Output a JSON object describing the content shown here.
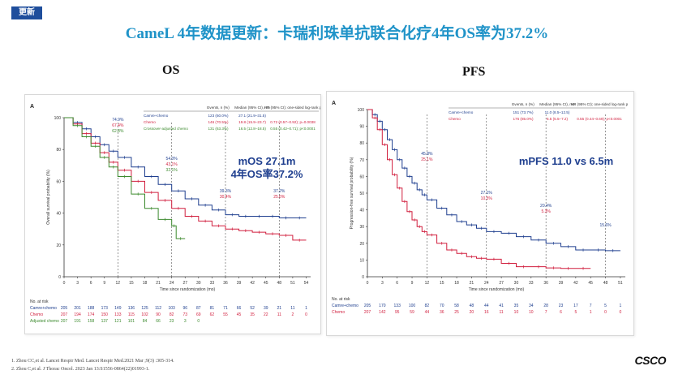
{
  "tag": "更新",
  "title": "CameL 4年数据更新：卡瑞利珠单抗联合化疗4年OS率为37.2%",
  "os_heading": "OS",
  "pfs_heading": "PFS",
  "footnotes": [
    "1.   Zhou CC,et al. Lancet Respir Med. Lancet Respir Med.2021 Mar ;9(3) :305-314.",
    "2.   Zhou C,et al. J Thorac Oncol. 2023 Jan 13:S1556-0864(22)01993-1."
  ],
  "logo_text": "CSCO",
  "colors": {
    "blue": "#1f3f8f",
    "red": "#d11f3e",
    "green": "#3c8a2e",
    "accent": "#1f93c8"
  },
  "chart_data": [
    {
      "type": "line",
      "panel_label": "A",
      "xlabel": "Time since randomization (mo)",
      "ylabel": "Overall survival probability (%)",
      "xticks": [
        "0",
        "3",
        "6",
        "9",
        "12",
        "15",
        "18",
        "21",
        "24",
        "27",
        "30",
        "33",
        "36",
        "39",
        "42",
        "45",
        "48",
        "51",
        "54"
      ],
      "yticks": [
        "0",
        "20",
        "40",
        "60",
        "80",
        "100"
      ],
      "xlim": [
        0,
        55
      ],
      "ylim": [
        0,
        100
      ],
      "table_header": [
        "Events, n (%)",
        "Median (95% CI), mo",
        "HR (95% CI); one-sided log-rank p"
      ],
      "table_rows": [
        {
          "name": "Camre+chemo",
          "events": "123 (60.0%)",
          "median": "27.1 (21.9–31.5)",
          "hr": ""
        },
        {
          "name": "Chemo",
          "events": "146 (70.5%)",
          "median": "19.8 (15.9–23.7)",
          "hr": "0.72 (0.57–0.92); p=0.0038"
        },
        {
          "name": "Crossover-adjusted chemo",
          "events": "131 (63.3%)",
          "median": "16.5 (12.8–18.5)",
          "hr": "0.55 (0.42–0.71); p<0.0001"
        }
      ],
      "highlight": [
        "mOS 27.1m",
        "4年OS率37.2%"
      ],
      "annotations": [
        {
          "x": 12,
          "labels": [
            "74.9%",
            "67.4%",
            "62.8%"
          ]
        },
        {
          "x": 24,
          "labels": [
            "54.0%",
            "43.1%",
            "32.1%"
          ]
        },
        {
          "x": 36,
          "labels": [
            "39.3%",
            "30.4%"
          ]
        },
        {
          "x": 48,
          "labels": [
            "37.2%",
            "25.6%"
          ]
        }
      ],
      "series": [
        {
          "name": "Camre+chemo",
          "x": [
            0,
            2,
            4,
            6,
            8,
            10,
            12,
            15,
            18,
            21,
            24,
            27,
            30,
            33,
            36,
            39,
            42,
            45,
            48,
            51,
            54
          ],
          "y": [
            100,
            97,
            93,
            88,
            83,
            79,
            75,
            69,
            63,
            58,
            54,
            49,
            45,
            42,
            39,
            38,
            38,
            38,
            37,
            37,
            37
          ]
        },
        {
          "name": "Chemo",
          "x": [
            0,
            2,
            4,
            6,
            8,
            10,
            12,
            15,
            18,
            21,
            24,
            27,
            30,
            33,
            36,
            39,
            42,
            45,
            48,
            51,
            54
          ],
          "y": [
            100,
            96,
            90,
            84,
            78,
            72,
            67,
            60,
            53,
            48,
            43,
            38,
            35,
            32,
            30,
            29,
            28,
            27,
            26,
            23,
            23
          ]
        },
        {
          "name": "Adjusted chemo",
          "x": [
            0,
            2,
            4,
            6,
            8,
            10,
            12,
            15,
            18,
            21,
            24,
            25,
            27
          ],
          "y": [
            100,
            95,
            88,
            82,
            75,
            69,
            63,
            52,
            43,
            36,
            32,
            24,
            24
          ]
        }
      ],
      "at_risk_title": "No. at risk",
      "at_risk": [
        {
          "name": "Camre+chemo",
          "values": [
            "205",
            "201",
            "188",
            "173",
            "149",
            "136",
            "125",
            "112",
            "103",
            "96",
            "87",
            "81",
            "71",
            "66",
            "52",
            "39",
            "21",
            "11",
            "1"
          ]
        },
        {
          "name": "Chemo",
          "values": [
            "207",
            "194",
            "174",
            "150",
            "133",
            "115",
            "102",
            "90",
            "82",
            "73",
            "69",
            "62",
            "55",
            "45",
            "35",
            "22",
            "11",
            "2",
            "0"
          ]
        },
        {
          "name": "Adjusted chemo",
          "values": [
            "207",
            "191",
            "158",
            "137",
            "121",
            "101",
            "84",
            "66",
            "23",
            "3",
            "0",
            "",
            "",
            "",
            "",
            "",
            "",
            "",
            ""
          ]
        }
      ]
    },
    {
      "type": "line",
      "panel_label": "A",
      "xlabel": "Time since randomization (mo)",
      "ylabel": "Progression-free survival probability (%)",
      "xticks": [
        "0",
        "3",
        "6",
        "9",
        "12",
        "15",
        "18",
        "21",
        "24",
        "27",
        "30",
        "33",
        "36",
        "39",
        "42",
        "45",
        "48",
        "51"
      ],
      "yticks": [
        "0",
        "10",
        "20",
        "30",
        "40",
        "50",
        "60",
        "70",
        "80",
        "90",
        "100"
      ],
      "xlim": [
        0,
        52
      ],
      "ylim": [
        0,
        100
      ],
      "table_header": [
        "Events, n (%)",
        "Median (95% CI), mo",
        "HR (95% CI); one-sided log-rank p"
      ],
      "table_rows": [
        {
          "name": "Camre+chemo",
          "events": "151 (73.7%)",
          "median": "11.0 (8.5–12.5)",
          "hr": ""
        },
        {
          "name": "Chemo",
          "events": "176 (85.0%)",
          "median": "6.5 (5.5–7.2)",
          "hr": "0.55 (0.44–0.69); p<0.0001"
        }
      ],
      "highlight": [
        "mPFS 11.0 vs 6.5m"
      ],
      "annotations": [
        {
          "x": 12,
          "labels": [
            "45.8%",
            "25.1%"
          ]
        },
        {
          "x": 24,
          "labels": [
            "27.1%",
            "10.5%"
          ]
        },
        {
          "x": 36,
          "labels": [
            "20.4%",
            "5.3%"
          ]
        },
        {
          "x": 48,
          "labels": [
            "15.6%"
          ]
        }
      ],
      "series": [
        {
          "name": "Camre+chemo",
          "x": [
            0,
            1,
            2,
            3,
            4,
            5,
            6,
            7,
            8,
            9,
            10,
            11,
            12,
            14,
            16,
            18,
            20,
            22,
            24,
            27,
            30,
            33,
            36,
            39,
            42,
            45,
            48,
            51
          ],
          "y": [
            100,
            97,
            93,
            88,
            82,
            76,
            70,
            65,
            60,
            56,
            52,
            49,
            46,
            41,
            37,
            33,
            31,
            29,
            27,
            26,
            24,
            22,
            20,
            18,
            16,
            16,
            15.6,
            15.6
          ]
        },
        {
          "name": "Chemo",
          "x": [
            0,
            1,
            2,
            3,
            4,
            5,
            6,
            7,
            8,
            9,
            10,
            11,
            12,
            14,
            16,
            18,
            20,
            22,
            24,
            27,
            30,
            33,
            36,
            39,
            42,
            45
          ],
          "y": [
            100,
            95,
            88,
            79,
            70,
            61,
            53,
            45,
            39,
            34,
            30,
            27,
            25,
            20,
            16,
            14,
            12,
            11,
            10.5,
            8,
            6,
            6,
            5.3,
            5,
            5,
            5
          ]
        }
      ],
      "at_risk_title": "No. at risk",
      "at_risk": [
        {
          "name": "Camre+chemo",
          "values": [
            "205",
            "170",
            "133",
            "100",
            "82",
            "70",
            "58",
            "48",
            "44",
            "41",
            "35",
            "34",
            "28",
            "23",
            "17",
            "7",
            "5",
            "1"
          ]
        },
        {
          "name": "Chemo",
          "values": [
            "207",
            "142",
            "95",
            "59",
            "44",
            "36",
            "25",
            "20",
            "16",
            "11",
            "10",
            "10",
            "7",
            "6",
            "5",
            "1",
            "0",
            "0"
          ]
        }
      ]
    }
  ]
}
